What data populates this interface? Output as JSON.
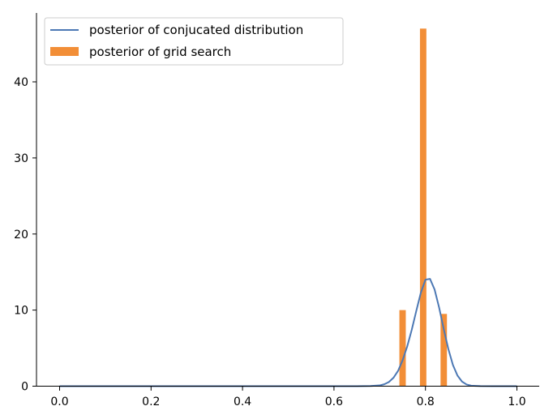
{
  "chart_data": {
    "type": "bar",
    "xlim": [
      -0.05,
      1.05
    ],
    "ylim": [
      0,
      49
    ],
    "xticks": [
      {
        "value": 0.0,
        "label": "0.0"
      },
      {
        "value": 0.2,
        "label": "0.2"
      },
      {
        "value": 0.4,
        "label": "0.4"
      },
      {
        "value": 0.6,
        "label": "0.6"
      },
      {
        "value": 0.8,
        "label": "0.8"
      },
      {
        "value": 1.0,
        "label": "1.0"
      }
    ],
    "yticks": [
      {
        "value": 0,
        "label": "0"
      },
      {
        "value": 10,
        "label": "10"
      },
      {
        "value": 20,
        "label": "20"
      },
      {
        "value": 30,
        "label": "30"
      },
      {
        "value": 40,
        "label": "40"
      }
    ],
    "grid": false,
    "legend_position": "top-left",
    "series": [
      {
        "name": "posterior of conjucated distribution",
        "type": "line",
        "color": "#4c78b4",
        "x": [
          0.0,
          0.05,
          0.1,
          0.15,
          0.2,
          0.25,
          0.3,
          0.35,
          0.4,
          0.45,
          0.5,
          0.55,
          0.6,
          0.65,
          0.68,
          0.7,
          0.71,
          0.72,
          0.73,
          0.74,
          0.75,
          0.76,
          0.77,
          0.78,
          0.79,
          0.8,
          0.81,
          0.82,
          0.83,
          0.84,
          0.85,
          0.86,
          0.87,
          0.88,
          0.89,
          0.9,
          0.92,
          0.95,
          1.0
        ],
        "y": [
          0,
          0,
          0,
          0,
          0,
          0,
          0,
          0,
          0,
          0,
          0,
          0,
          0,
          0,
          0.02,
          0.1,
          0.25,
          0.55,
          1.1,
          2.0,
          3.4,
          5.2,
          7.4,
          9.9,
          12.3,
          14.0,
          14.1,
          12.7,
          10.3,
          7.5,
          4.9,
          2.8,
          1.4,
          0.6,
          0.22,
          0.07,
          0.01,
          0,
          0
        ]
      },
      {
        "name": "posterior of grid search",
        "type": "bar",
        "color": "#f28e37",
        "x": [
          0.75,
          0.795,
          0.84
        ],
        "values": [
          10,
          47,
          9.5
        ],
        "bar_width": 0.014
      }
    ]
  }
}
